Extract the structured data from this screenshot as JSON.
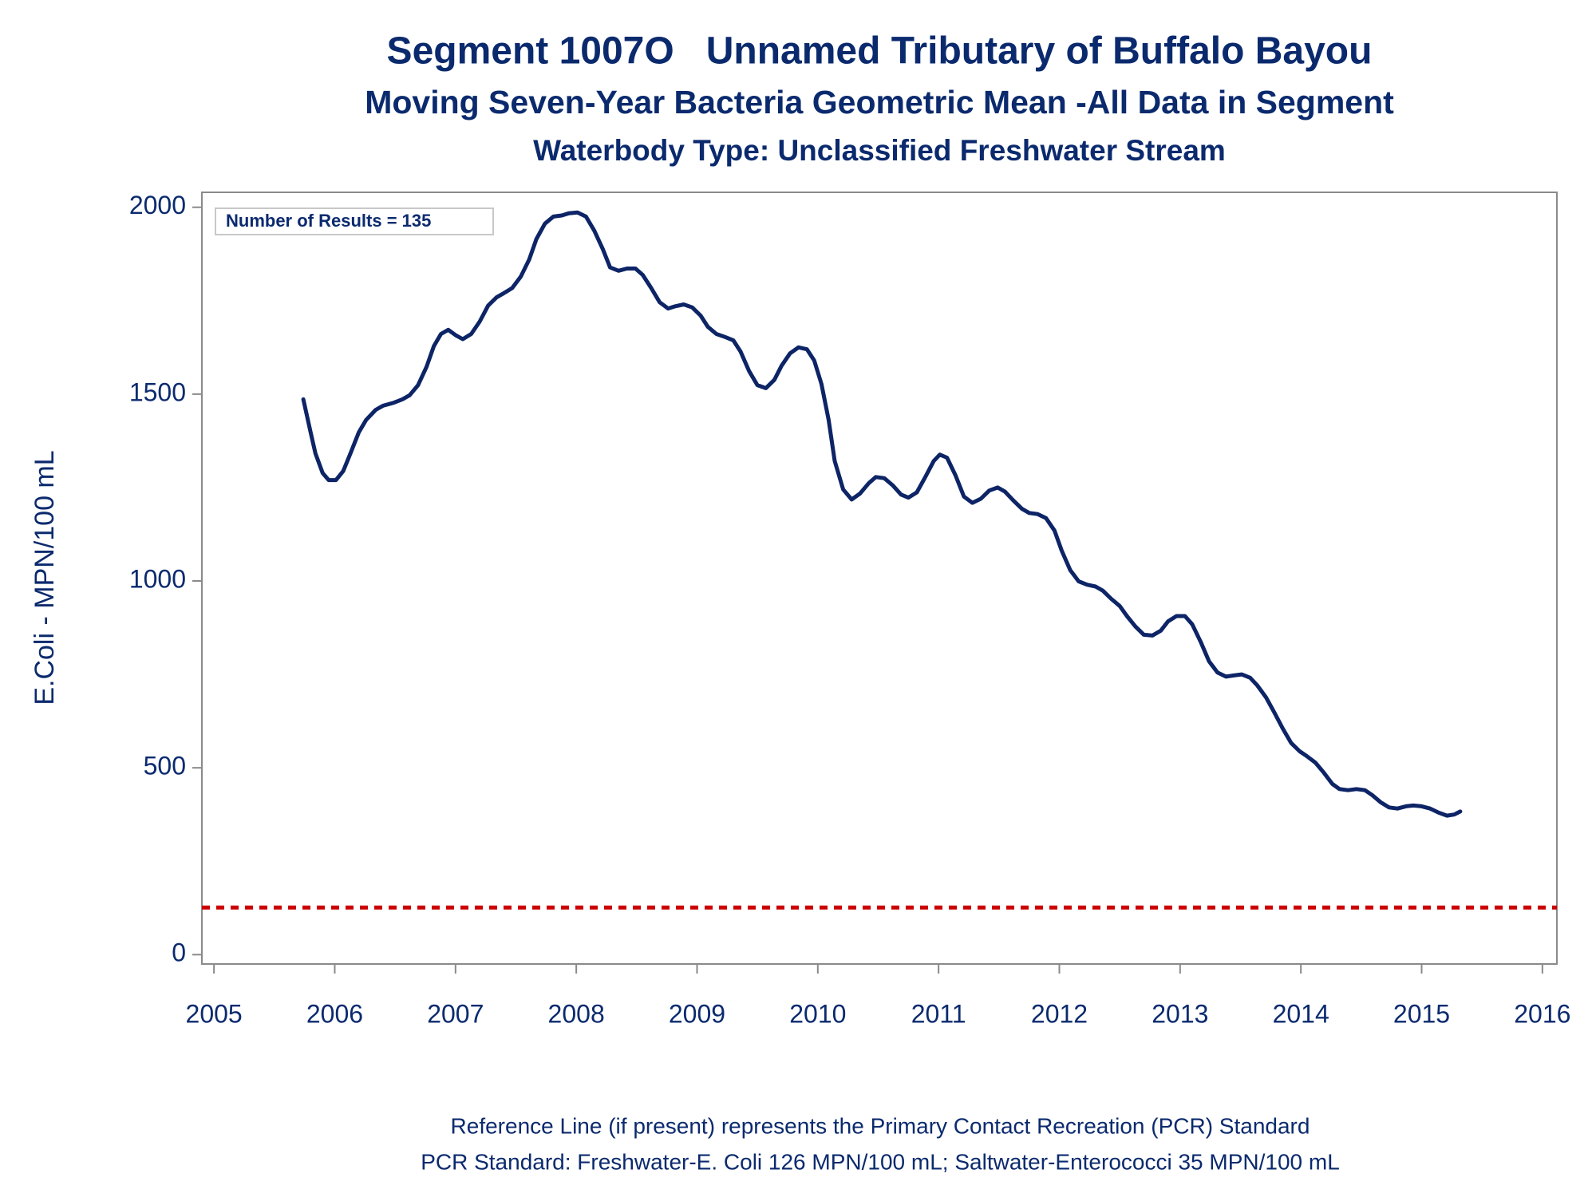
{
  "chart_data": {
    "type": "line",
    "title": "Segment 1007O   Unnamed Tributary of Buffalo Bayou",
    "subtitle": "Moving Seven-Year Bacteria Geometric Mean -All Data in Segment",
    "subtitle2": "Waterbody Type: Unclassified Freshwater Stream",
    "y_label": "E.Coli - MPN/100 mL",
    "annotation": "Number of Results = 135",
    "footnotes": [
      "Reference Line (if present) represents the Primary Contact Recreation (PCR) Standard",
      "PCR Standard: Freshwater-E. Coli 126 MPN/100 mL; Saltwater-Enterococci 35 MPN/100 mL"
    ],
    "color": "#0d2466",
    "reference_line": {
      "value": 126,
      "color": "#cc0000"
    },
    "x": [
      2005.74,
      2005.8,
      2005.84,
      2005.9,
      2005.95,
      2006.01,
      2006.07,
      2006.13,
      2006.2,
      2006.26,
      2006.34,
      2006.4,
      2006.49,
      2006.56,
      2006.62,
      2006.69,
      2006.76,
      2006.82,
      2006.88,
      2006.94,
      2007.0,
      2007.06,
      2007.13,
      2007.2,
      2007.27,
      2007.34,
      2007.4,
      2007.47,
      2007.54,
      2007.61,
      2007.67,
      2007.74,
      2007.81,
      2007.88,
      2007.94,
      2008.01,
      2008.08,
      2008.15,
      2008.22,
      2008.28,
      2008.35,
      2008.42,
      2008.49,
      2008.55,
      2008.62,
      2008.69,
      2008.76,
      2008.82,
      2008.89,
      2008.96,
      2009.03,
      2009.09,
      2009.16,
      2009.23,
      2009.3,
      2009.36,
      2009.43,
      2009.5,
      2009.57,
      2009.64,
      2009.7,
      2009.77,
      2009.84,
      2009.91,
      2009.97,
      2010.03,
      2010.09,
      2010.14,
      2010.21,
      2010.28,
      2010.35,
      2010.42,
      2010.48,
      2010.55,
      2010.62,
      2010.69,
      2010.75,
      2010.82,
      2010.89,
      2010.96,
      2011.01,
      2011.07,
      2011.14,
      2011.21,
      2011.28,
      2011.35,
      2011.42,
      2011.49,
      2011.55,
      2011.62,
      2011.69,
      2011.75,
      2011.82,
      2011.89,
      2011.96,
      2012.02,
      2012.09,
      2012.16,
      2012.23,
      2012.3,
      2012.36,
      2012.43,
      2012.5,
      2012.56,
      2012.63,
      2012.7,
      2012.77,
      2012.84,
      2012.9,
      2012.97,
      2013.04,
      2013.1,
      2013.17,
      2013.24,
      2013.31,
      2013.38,
      2013.44,
      2013.51,
      2013.58,
      2013.64,
      2013.71,
      2013.78,
      2013.85,
      2013.92,
      2013.99,
      2014.05,
      2014.12,
      2014.19,
      2014.26,
      2014.32,
      2014.39,
      2014.46,
      2014.53,
      2014.59,
      2014.66,
      2014.73,
      2014.8,
      2014.87,
      2014.93,
      2015.0,
      2015.07,
      2015.14,
      2015.21,
      2015.27,
      2015.32
    ],
    "values": [
      1486,
      1398,
      1341,
      1289,
      1270,
      1270,
      1294,
      1341,
      1398,
      1431,
      1458,
      1469,
      1477,
      1486,
      1497,
      1524,
      1573,
      1628,
      1661,
      1672,
      1658,
      1647,
      1661,
      1694,
      1737,
      1759,
      1770,
      1784,
      1814,
      1860,
      1915,
      1956,
      1975,
      1978,
      1984,
      1986,
      1975,
      1937,
      1888,
      1839,
      1830,
      1836,
      1836,
      1819,
      1784,
      1746,
      1729,
      1735,
      1740,
      1732,
      1710,
      1680,
      1661,
      1653,
      1644,
      1614,
      1562,
      1524,
      1516,
      1538,
      1576,
      1609,
      1625,
      1620,
      1590,
      1527,
      1431,
      1321,
      1245,
      1218,
      1234,
      1261,
      1278,
      1275,
      1256,
      1231,
      1223,
      1237,
      1278,
      1321,
      1338,
      1330,
      1283,
      1226,
      1209,
      1220,
      1242,
      1250,
      1239,
      1215,
      1193,
      1182,
      1179,
      1168,
      1135,
      1081,
      1029,
      999,
      990,
      985,
      974,
      952,
      933,
      906,
      878,
      856,
      854,
      867,
      892,
      906,
      906,
      884,
      837,
      785,
      755,
      744,
      747,
      750,
      741,
      720,
      689,
      648,
      605,
      566,
      544,
      531,
      514,
      487,
      457,
      443,
      440,
      443,
      440,
      427,
      408,
      394,
      391,
      397,
      399,
      397,
      391,
      380,
      372,
      375,
      383
    ],
    "xlim": [
      2004.9,
      2016.12
    ],
    "xticks": [
      2005,
      2006,
      2007,
      2008,
      2009,
      2010,
      2011,
      2012,
      2013,
      2014,
      2015,
      2016
    ],
    "ylim": [
      -25,
      2040
    ],
    "yticks": [
      0,
      500,
      1000,
      1500,
      2000
    ],
    "grid": false
  }
}
